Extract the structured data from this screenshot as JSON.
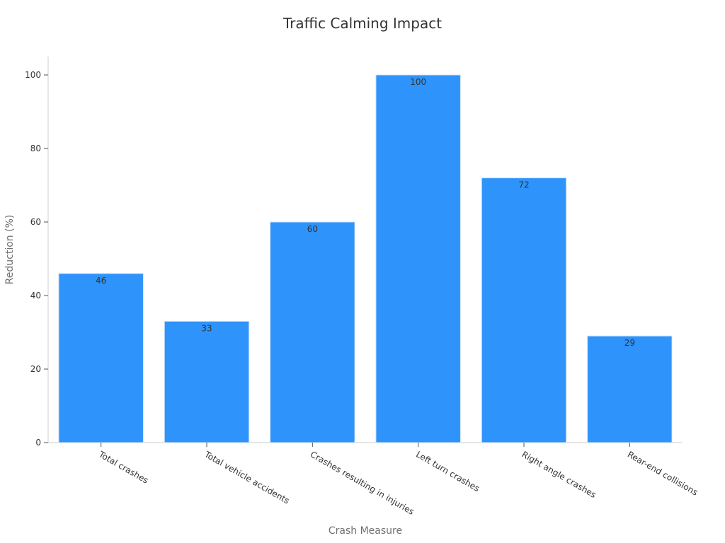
{
  "chart_data": {
    "type": "bar",
    "title": "Traffic Calming Impact",
    "xlabel": "Crash Measure",
    "ylabel": "Reduction (%)",
    "categories": [
      "Total crashes",
      "Total vehicle accidents",
      "Crashes resulting in injuries",
      "Left turn crashes",
      "Right angle crashes",
      "Rear-end collisions"
    ],
    "values": [
      46,
      33,
      60,
      100,
      72,
      29
    ],
    "ylim": [
      0,
      105
    ],
    "yticks": [
      0,
      20,
      40,
      60,
      80,
      100
    ],
    "bar_color": "#2e93fa",
    "grid": false,
    "legend": "none"
  }
}
